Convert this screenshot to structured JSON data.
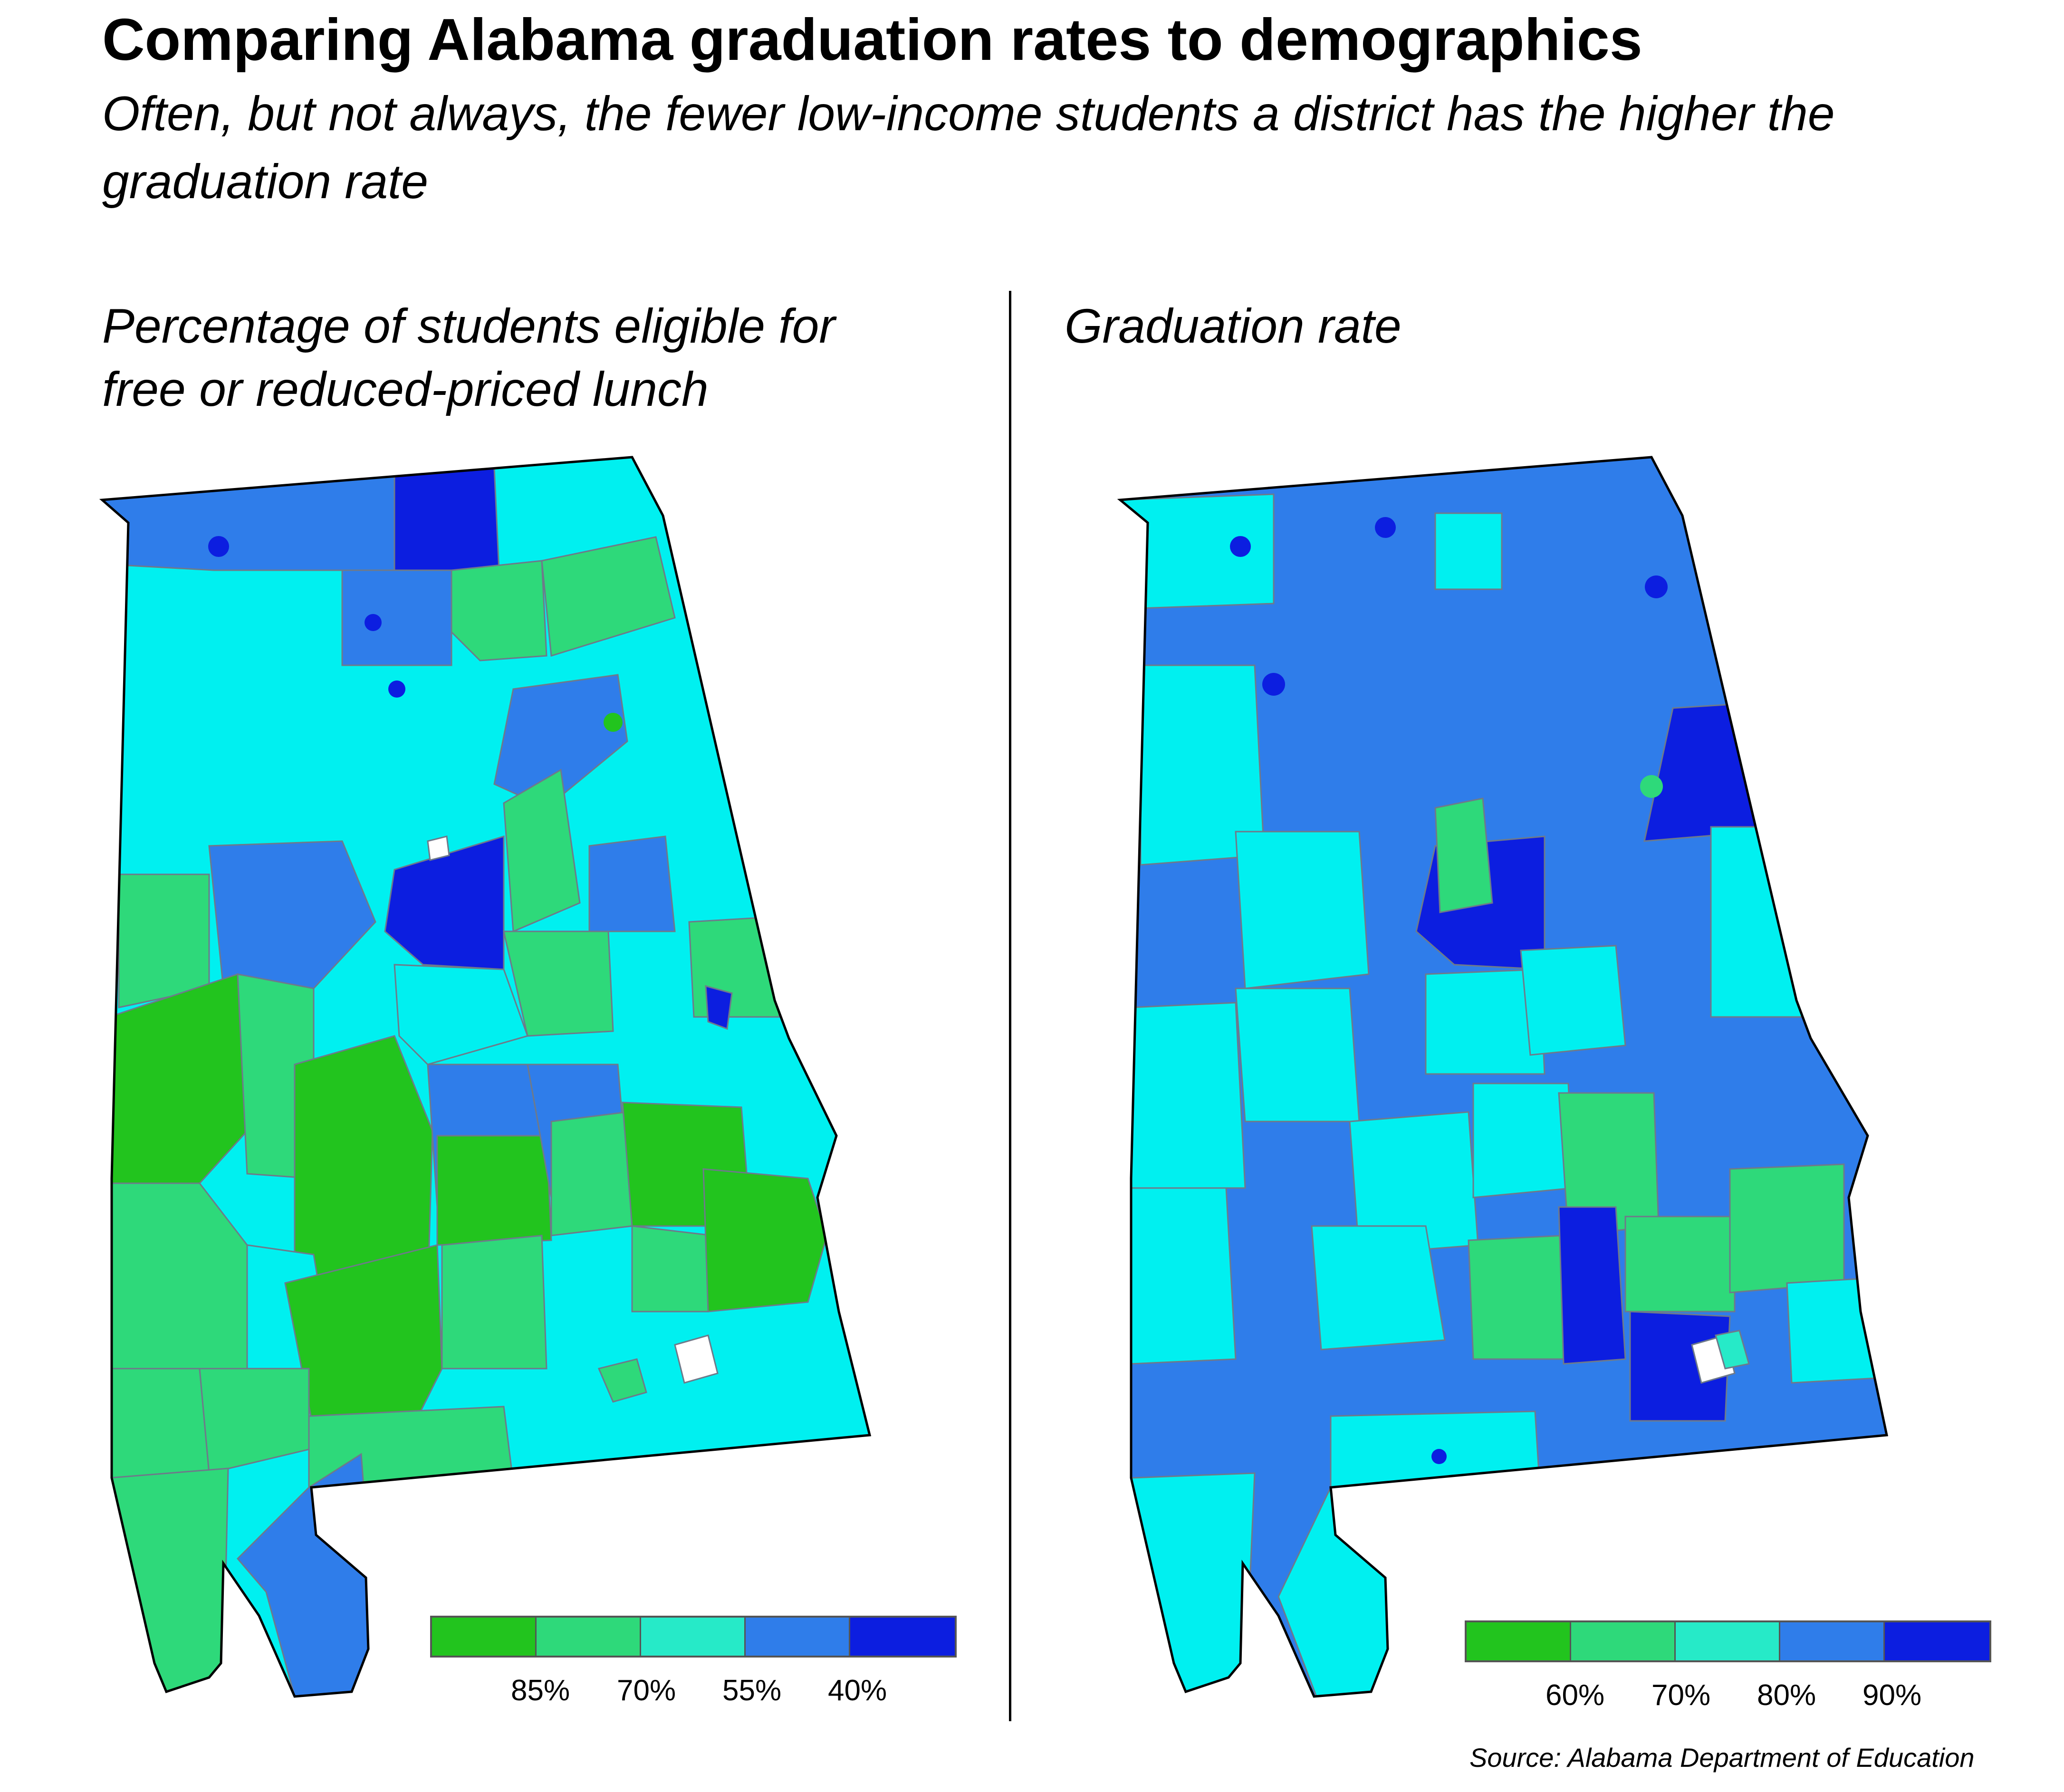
{
  "title": "Comparing Alabama graduation rates to demographics",
  "subtitle": "Often, but not always, the fewer low-income students a district has the higher the graduation rate",
  "left_map": {
    "title": "Percentage of students eligible for free or reduced-priced lunch",
    "legend": {
      "colors": [
        "#22c41e",
        "#2ed97a",
        "#26eac8",
        "#2f7dea",
        "#0c1ee0"
      ],
      "labels": [
        "85%",
        "70%",
        "55%",
        "40%"
      ]
    }
  },
  "right_map": {
    "title": "Graduation rate",
    "legend": {
      "colors": [
        "#22c41e",
        "#2ed97a",
        "#26eac8",
        "#2f7dea",
        "#0c1ee0"
      ],
      "labels": [
        "60%",
        "70%",
        "80%",
        "90%"
      ]
    }
  },
  "source": "Source: Alabama Department of Education",
  "palette": {
    "green": "#22c41e",
    "light_green": "#2ed97a",
    "aqua": "#26eac8",
    "cyan": "#00f0f0",
    "blue": "#2f7dea",
    "dark_blue": "#0c1ee0"
  }
}
